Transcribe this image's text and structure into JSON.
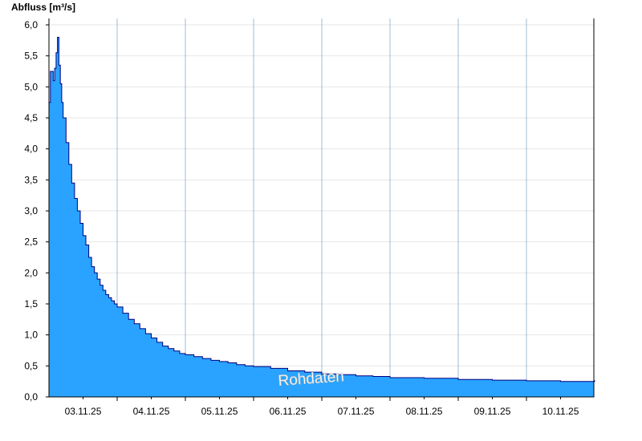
{
  "chart_data": {
    "type": "area",
    "ylabel": "Abfluss [m³/s]",
    "xlabel": "",
    "watermark": "Rohdaten",
    "ylim": [
      0,
      6.2
    ],
    "xlim": [
      "2025-11-02 00:00",
      "2025-11-10 00:00"
    ],
    "y_ticks": [
      "0,0",
      "0,5",
      "1,0",
      "1,5",
      "2,0",
      "2,5",
      "3,0",
      "3,5",
      "4,0",
      "4,5",
      "5,0",
      "5,5",
      "6,0"
    ],
    "x_tick_labels": [
      "03.11.25",
      "04.11.25",
      "05.11.25",
      "06.11.25",
      "07.11.25",
      "08.11.25",
      "09.11.25",
      "10.11.25"
    ],
    "grid": true,
    "colors": {
      "fill": "#29a3ff",
      "line": "#000080",
      "grid": "#e6e6e6",
      "axis": "#000000",
      "watermark": "#ffffff"
    },
    "series": [
      {
        "x": [
          "2025-11-02 00:00",
          "2025-11-02 00:30",
          "2025-11-02 01:00",
          "2025-11-02 01:30",
          "2025-11-02 02:00",
          "2025-11-02 02:30",
          "2025-11-02 03:00",
          "2025-11-02 03:30",
          "2025-11-02 04:00",
          "2025-11-02 04:30",
          "2025-11-02 05:00",
          "2025-11-02 06:00",
          "2025-11-02 07:00",
          "2025-11-02 08:00",
          "2025-11-02 09:00",
          "2025-11-02 10:00",
          "2025-11-02 11:00",
          "2025-11-02 12:00",
          "2025-11-02 13:00",
          "2025-11-02 14:00",
          "2025-11-02 15:00",
          "2025-11-02 16:00",
          "2025-11-02 17:00",
          "2025-11-02 18:00",
          "2025-11-02 19:00",
          "2025-11-02 20:00",
          "2025-11-02 21:00",
          "2025-11-02 22:00",
          "2025-11-02 23:00",
          "2025-11-03 00:00",
          "2025-11-03 02:00",
          "2025-11-03 04:00",
          "2025-11-03 06:00",
          "2025-11-03 08:00",
          "2025-11-03 10:00",
          "2025-11-03 12:00",
          "2025-11-03 14:00",
          "2025-11-03 16:00",
          "2025-11-03 18:00",
          "2025-11-03 20:00",
          "2025-11-03 22:00",
          "2025-11-04 00:00",
          "2025-11-04 03:00",
          "2025-11-04 06:00",
          "2025-11-04 09:00",
          "2025-11-04 12:00",
          "2025-11-04 15:00",
          "2025-11-04 18:00",
          "2025-11-04 21:00",
          "2025-11-05 00:00",
          "2025-11-05 06:00",
          "2025-11-05 12:00",
          "2025-11-05 18:00",
          "2025-11-06 00:00",
          "2025-11-06 06:00",
          "2025-11-06 12:00",
          "2025-11-06 18:00",
          "2025-11-07 00:00",
          "2025-11-07 12:00",
          "2025-11-08 00:00",
          "2025-11-08 12:00",
          "2025-11-09 00:00",
          "2025-11-09 12:00",
          "2025-11-10 00:00"
        ],
        "y": [
          4.75,
          5.25,
          5.25,
          5.1,
          5.3,
          5.55,
          5.8,
          5.35,
          5.05,
          4.75,
          4.5,
          4.1,
          3.75,
          3.45,
          3.2,
          3.0,
          2.8,
          2.6,
          2.45,
          2.25,
          2.1,
          2.0,
          1.9,
          1.8,
          1.72,
          1.65,
          1.6,
          1.55,
          1.5,
          1.45,
          1.35,
          1.25,
          1.18,
          1.1,
          1.02,
          0.95,
          0.88,
          0.82,
          0.78,
          0.74,
          0.7,
          0.68,
          0.65,
          0.62,
          0.59,
          0.57,
          0.55,
          0.52,
          0.5,
          0.49,
          0.46,
          0.42,
          0.4,
          0.37,
          0.36,
          0.34,
          0.33,
          0.31,
          0.3,
          0.28,
          0.27,
          0.26,
          0.25,
          0.26
        ]
      }
    ]
  }
}
